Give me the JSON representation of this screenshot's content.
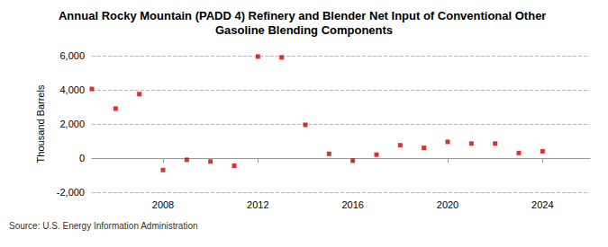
{
  "chart_data": {
    "type": "scatter",
    "title": "Annual Rocky Mountain (PADD 4) Refinery and Blender Net Input of Conventional Other Gasoline Blending Components",
    "y_label": "Thousand Barrels",
    "source": "Source: U.S. Energy Information Administration",
    "x": [
      2005,
      2006,
      2007,
      2008,
      2009,
      2010,
      2011,
      2012,
      2013,
      2014,
      2015,
      2016,
      2017,
      2018,
      2019,
      2020,
      2021,
      2022,
      2023,
      2024
    ],
    "values": [
      4050,
      2900,
      3750,
      -700,
      -100,
      -200,
      -450,
      5950,
      5900,
      1950,
      250,
      -150,
      200,
      750,
      600,
      950,
      850,
      850,
      300,
      400
    ],
    "color": "#cc0000",
    "marker": "square",
    "xlim": [
      2005,
      2026
    ],
    "xticks": [
      2008,
      2012,
      2016,
      2020,
      2024
    ],
    "ylim": [
      -2000,
      6000
    ],
    "yticks": [
      {
        "value": -2000,
        "label": "-2,000"
      },
      0,
      {
        "value": 2000,
        "label": "2,000"
      },
      {
        "value": 4000,
        "label": "4,000"
      },
      {
        "value": 6000,
        "label": "6,000"
      }
    ],
    "grid": true
  }
}
